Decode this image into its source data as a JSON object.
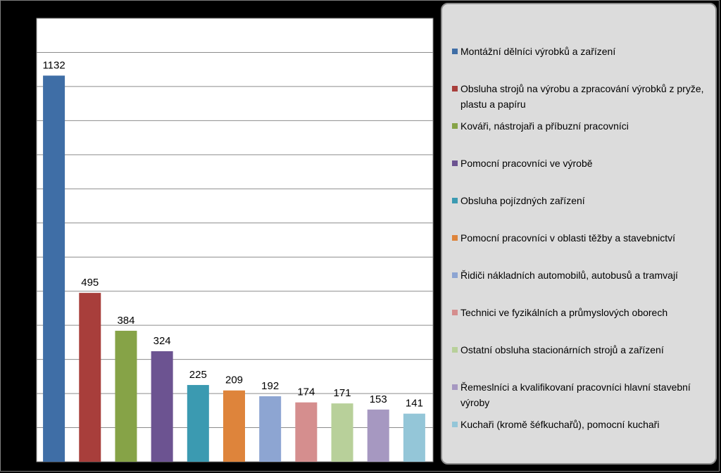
{
  "chart_data": {
    "type": "bar",
    "title": "",
    "xlabel": "",
    "ylabel": "",
    "ylim": [
      0,
      1300
    ],
    "yticks": [
      0,
      100,
      200,
      300,
      400,
      500,
      600,
      700,
      800,
      900,
      1000,
      1100,
      1200,
      1300
    ],
    "grid": true,
    "legend_position": "right",
    "categories": [
      "Montážní dělníci výrobků a zařízení",
      "Obsluha strojů na výrobu a zpracování výrobků z pryže, plastu a papíru",
      "Kováři, nástrojaři a příbuzní pracovníci",
      "Pomocní pracovníci ve výrobě",
      "Obsluha pojízdných zařízení",
      "Pomocní pracovníci v oblasti těžby a stavebnictví",
      "Řidiči nákladních automobilů, autobusů a tramvají",
      "Technici ve fyzikálních a průmyslových oborech",
      "Ostatní obsluha stacionárních strojů a zařízení",
      "Řemeslníci a kvalifikovaní pracovníci hlavní stavební výroby",
      "Kuchaři (kromě šéfkuchařů), pomocní kuchaři"
    ],
    "values": [
      1132,
      495,
      384,
      324,
      225,
      209,
      192,
      174,
      171,
      153,
      141
    ],
    "colors": [
      "#3f6ea6",
      "#a83e3b",
      "#86a347",
      "#6c5391",
      "#3b9ab1",
      "#de843b",
      "#8da5d2",
      "#d58e8e",
      "#b8d09a",
      "#a698c1",
      "#94c6d8"
    ]
  }
}
